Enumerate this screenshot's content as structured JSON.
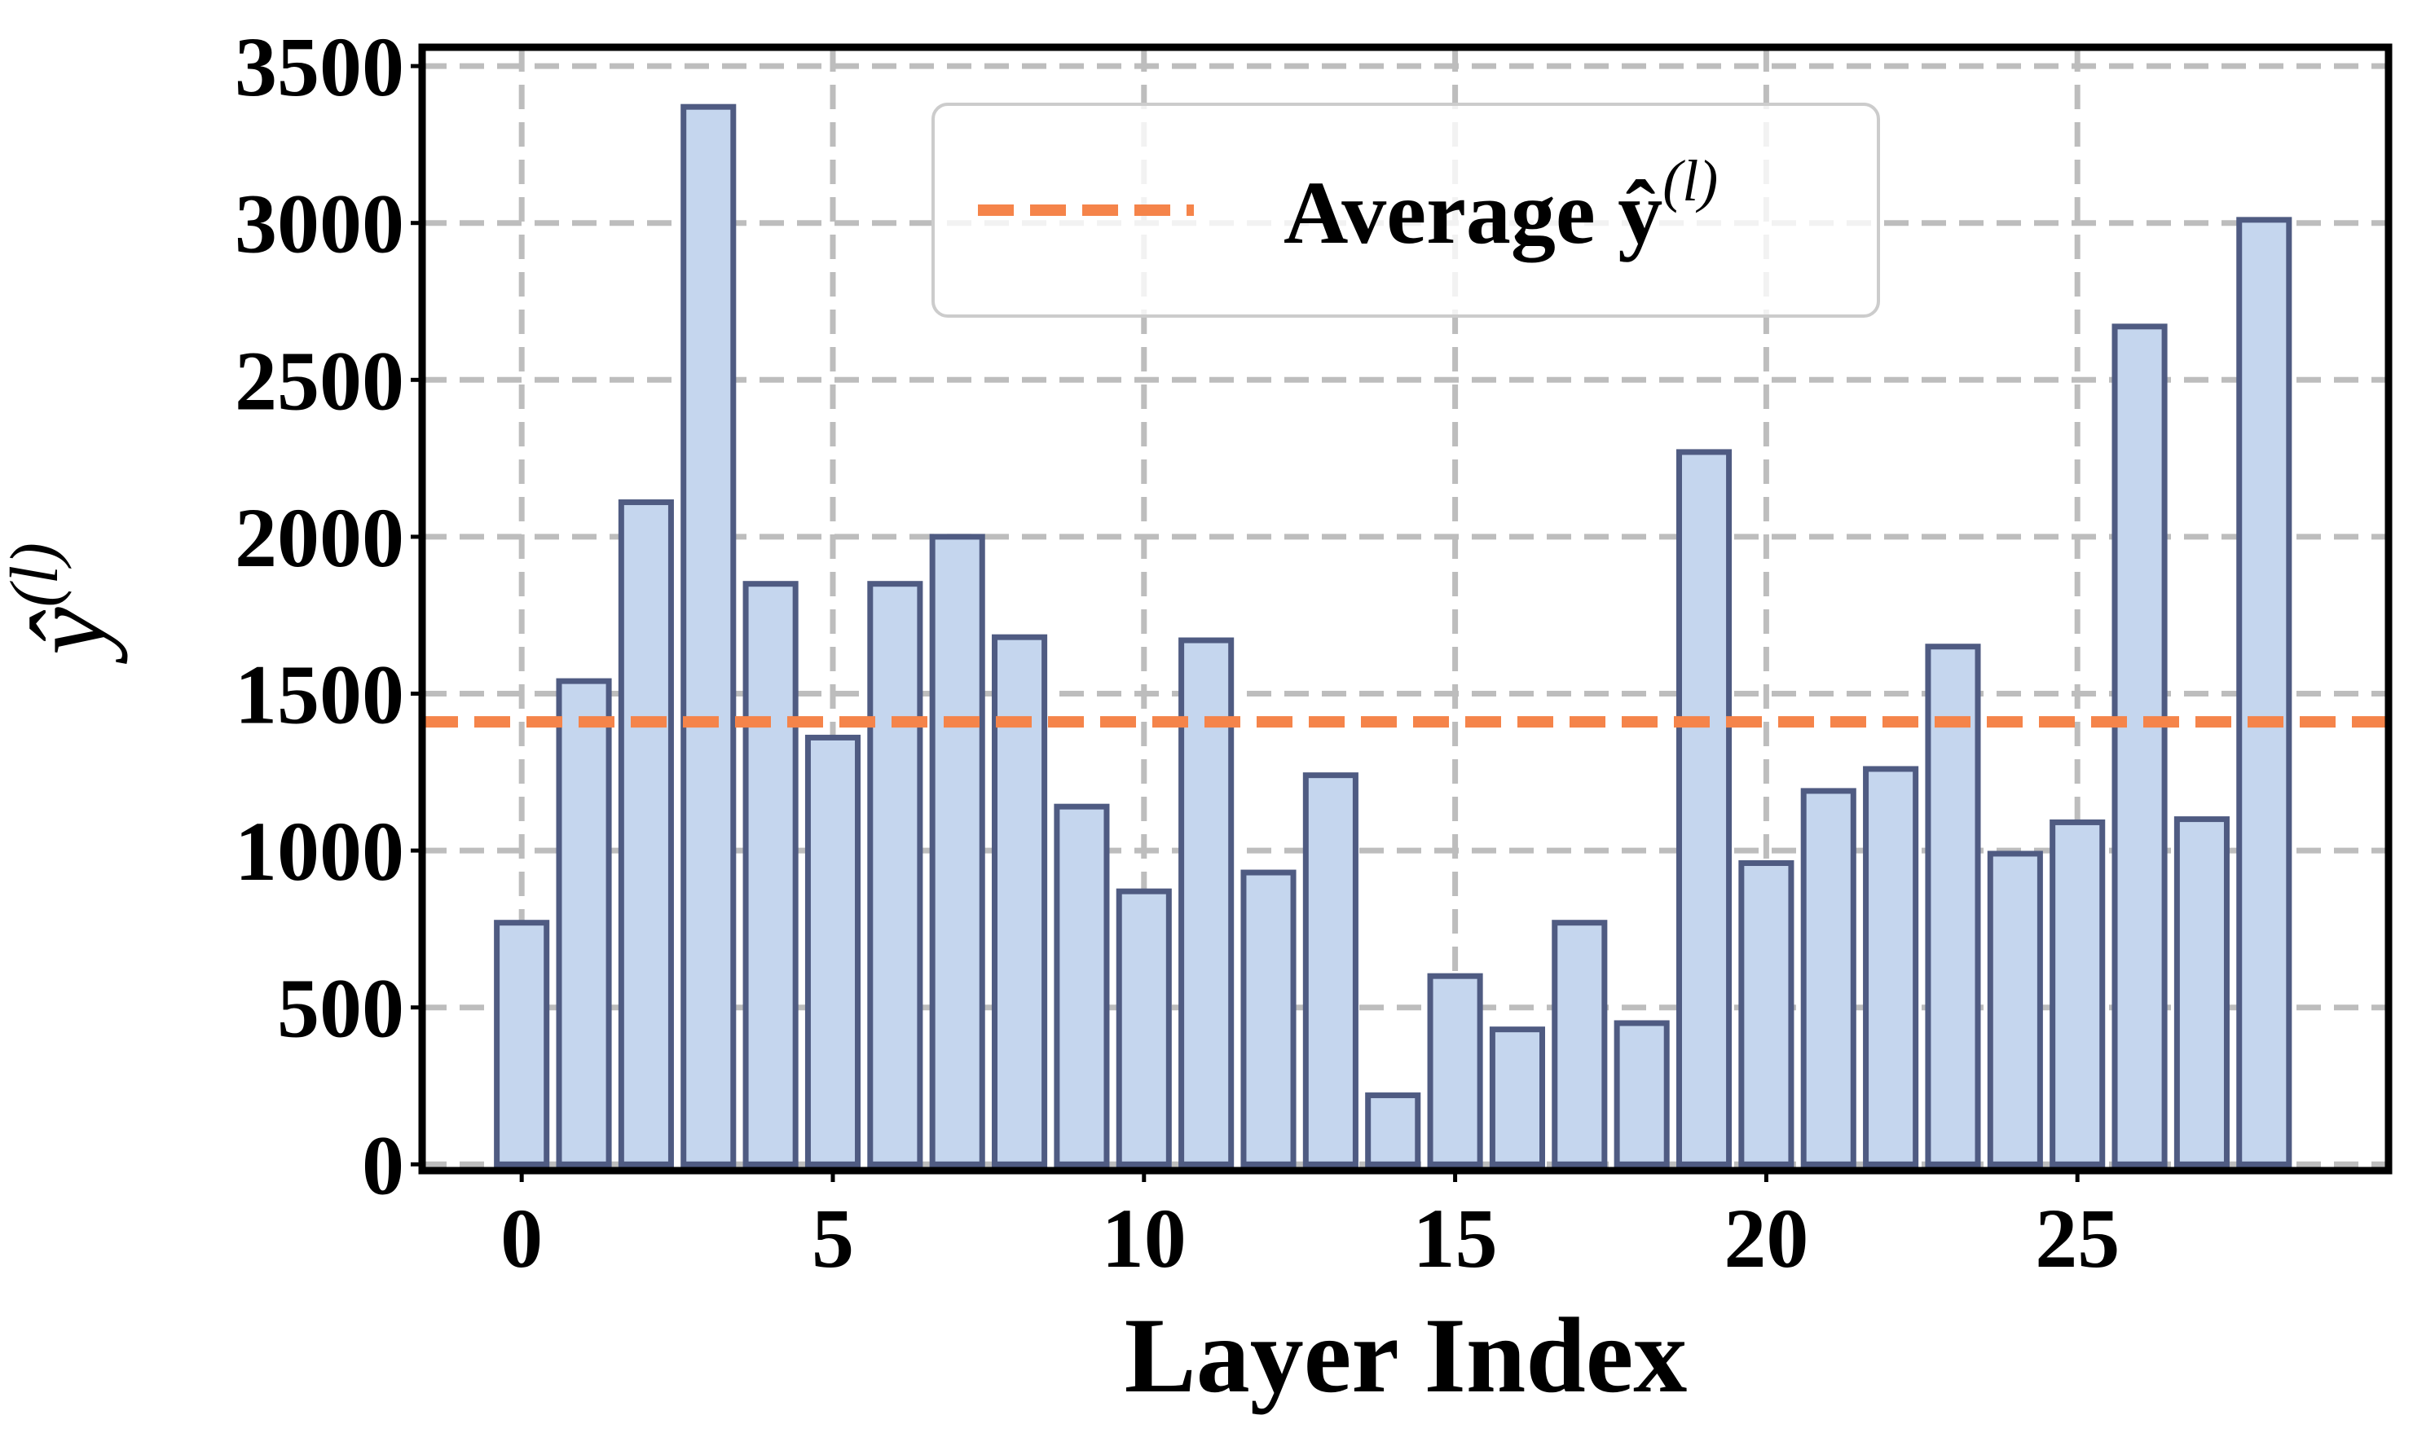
{
  "chart_data": {
    "type": "bar",
    "xlabel": "Layer Index",
    "ylabel_base": "ŷ",
    "ylabel_superscript": "(l)",
    "x": [
      0,
      1,
      2,
      3,
      4,
      5,
      6,
      7,
      8,
      9,
      10,
      11,
      12,
      13,
      14,
      15,
      16,
      17,
      18,
      19,
      20,
      21,
      22,
      23,
      24,
      25,
      26,
      27,
      28
    ],
    "values": [
      770,
      1540,
      2110,
      3370,
      1850,
      1360,
      1850,
      2000,
      1680,
      1140,
      870,
      1670,
      930,
      1240,
      220,
      600,
      430,
      770,
      450,
      2270,
      960,
      1190,
      1260,
      1650,
      990,
      1090,
      2670,
      1100,
      3010
    ],
    "xlim": [
      -1.6,
      30.0
    ],
    "ylim": [
      -20,
      3560
    ],
    "xticks": [
      0,
      5,
      10,
      15,
      20,
      25
    ],
    "yticks": [
      0,
      500,
      1000,
      1500,
      2000,
      2500,
      3000,
      3500
    ],
    "xtick_labels": [
      "0",
      "5",
      "10",
      "15",
      "20",
      "25"
    ],
    "ytick_labels": [
      "0",
      "500",
      "1000",
      "1500",
      "2000",
      "2500",
      "3000",
      "3500"
    ],
    "average_line": {
      "value": 1410,
      "legend_base": "Average ŷ",
      "legend_superscript": "(l)"
    },
    "grid": true,
    "legend_position": "upper-center",
    "colors": {
      "bar_fill": "#c5d6ee",
      "bar_edge": "#4f5b82",
      "average_line": "#f5844a",
      "grid": "#bdbdbd",
      "frame": "#000000"
    }
  }
}
